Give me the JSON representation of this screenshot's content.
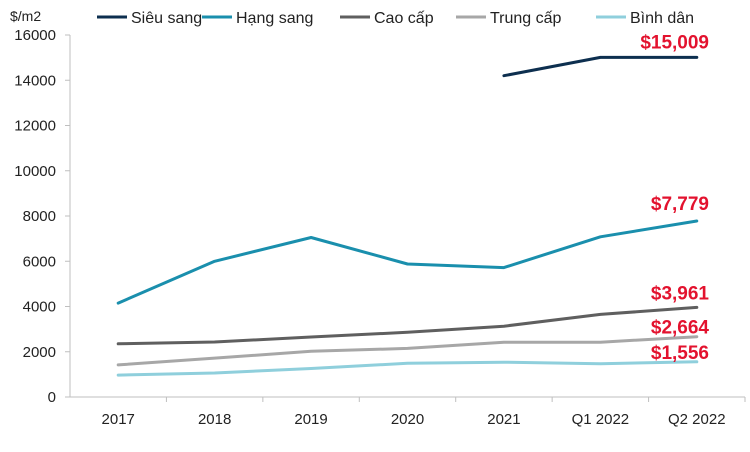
{
  "chart_data": {
    "type": "line",
    "title": "",
    "xlabel": "",
    "ylabel": "$/m2",
    "categories": [
      "2017",
      "2018",
      "2019",
      "2020",
      "2021",
      "Q1 2022",
      "Q2 2022"
    ],
    "ylim": [
      0,
      16000
    ],
    "yticks": [
      0,
      2000,
      4000,
      6000,
      8000,
      10000,
      12000,
      14000,
      16000
    ],
    "grid": false,
    "legend_position": "top",
    "series": [
      {
        "name": "Siêu sang",
        "color": "#0d2f4f",
        "values": [
          null,
          null,
          null,
          null,
          14200,
          15009,
          15009
        ]
      },
      {
        "name": "Hạng sang",
        "color": "#1a8fad",
        "values": [
          4150,
          6000,
          7050,
          5880,
          5720,
          7080,
          7779
        ]
      },
      {
        "name": "Cao cấp",
        "color": "#5f5f5f",
        "values": [
          2350,
          2430,
          2650,
          2860,
          3130,
          3650,
          3961
        ]
      },
      {
        "name": "Trung cấp",
        "color": "#a7a7a7",
        "values": [
          1420,
          1720,
          2020,
          2150,
          2420,
          2420,
          2664
        ]
      },
      {
        "name": "Bình dân",
        "color": "#8fcfdc",
        "values": [
          970,
          1060,
          1260,
          1490,
          1540,
          1470,
          1556
        ]
      }
    ],
    "annotations": [
      {
        "text": "$15,009",
        "series": "Siêu sang",
        "color": "#e3122e"
      },
      {
        "text": "$7,779",
        "series": "Hạng sang",
        "color": "#e3122e"
      },
      {
        "text": "$3,961",
        "series": "Cao cấp",
        "color": "#e3122e"
      },
      {
        "text": "$2,664",
        "series": "Trung cấp",
        "color": "#e3122e"
      },
      {
        "text": "$1,556",
        "series": "Bình dân",
        "color": "#e3122e"
      }
    ]
  }
}
